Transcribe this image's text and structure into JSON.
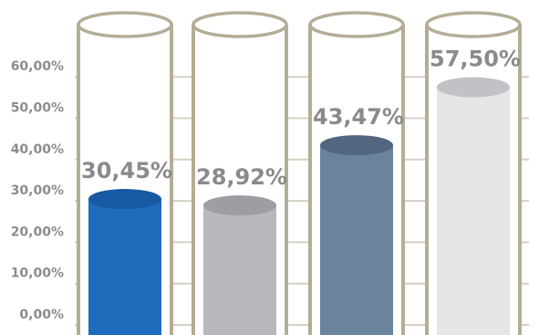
{
  "chart_data": {
    "type": "bar",
    "title": "",
    "xlabel": "",
    "ylabel": "",
    "categories": [
      "",
      "",
      "",
      ""
    ],
    "values": [
      30.45,
      28.92,
      43.47,
      57.5
    ],
    "value_labels": [
      "30,45%",
      "28,92%",
      "43,47%",
      "57,50%"
    ],
    "ylim": [
      0,
      60
    ],
    "y_ticks": [
      0,
      10,
      20,
      30,
      40,
      50,
      60
    ],
    "y_tick_labels": [
      "0,00%",
      "10,00%",
      "20,00%",
      "30,00%",
      "40,00%",
      "50,00%",
      "60,00%"
    ],
    "grid": true,
    "legend": "none",
    "style": "3d-cylinder",
    "bar_colors": [
      "#1f6cbd",
      "#b8b8bd",
      "#6b849e",
      "#e6e6e8"
    ],
    "bar_top_colors": [
      "#165aa2",
      "#9d9da3",
      "#52667f",
      "#c2c2c6"
    ],
    "tube_color": "#b4ad96",
    "grid_color": "#d4d0c3",
    "label_color": "#8a8a8a"
  }
}
